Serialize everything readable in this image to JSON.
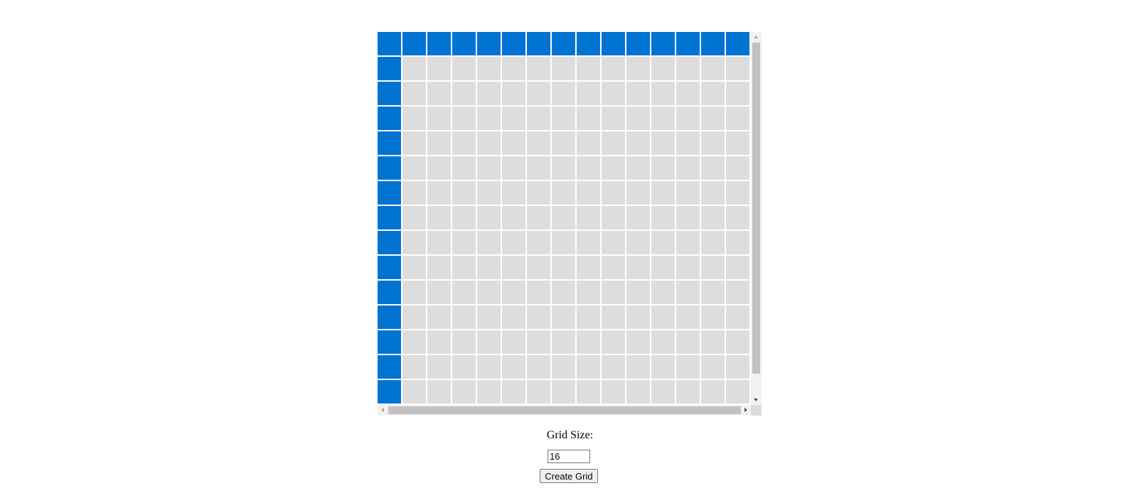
{
  "grid": {
    "size": 16,
    "border_color": "#0074d0",
    "inner_color": "#dddddd"
  },
  "controls": {
    "label": "Grid Size:",
    "input_value": "16",
    "button_label": "Create Grid"
  }
}
